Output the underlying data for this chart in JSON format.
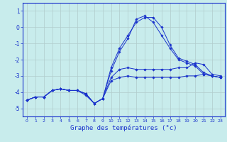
{
  "xlabel": "Graphe des températures (°c)",
  "background_color": "#c8ecec",
  "grid_color": "#b0cccc",
  "line_color": "#1a33cc",
  "xlim": [
    -0.5,
    23.5
  ],
  "ylim": [
    -5.5,
    1.5
  ],
  "yticks": [
    1,
    0,
    -1,
    -2,
    -3,
    -4,
    -5
  ],
  "xticks": [
    0,
    1,
    2,
    3,
    4,
    5,
    6,
    7,
    8,
    9,
    10,
    11,
    12,
    13,
    14,
    15,
    16,
    17,
    18,
    19,
    20,
    21,
    22,
    23
  ],
  "series": [
    {
      "x": [
        0,
        1,
        2,
        3,
        4,
        5,
        6,
        7,
        8,
        9,
        10,
        11,
        12,
        13,
        14,
        15,
        16,
        17,
        18,
        19,
        20,
        21,
        22,
        23
      ],
      "y": [
        -4.5,
        -4.3,
        -4.3,
        -3.9,
        -3.8,
        -3.9,
        -3.9,
        -4.1,
        -4.7,
        -4.4,
        -3.3,
        -3.1,
        -3.0,
        -3.1,
        -3.1,
        -3.1,
        -3.1,
        -3.1,
        -3.1,
        -3.0,
        -3.0,
        -2.9,
        -3.0,
        -3.1
      ]
    },
    {
      "x": [
        0,
        1,
        2,
        3,
        4,
        5,
        6,
        7,
        8,
        9,
        10,
        11,
        12,
        13,
        14,
        15,
        16,
        17,
        18,
        19,
        20,
        21,
        22,
        23
      ],
      "y": [
        -4.5,
        -4.3,
        -4.3,
        -3.9,
        -3.8,
        -3.9,
        -3.9,
        -4.1,
        -4.7,
        -4.4,
        -3.1,
        -2.6,
        -2.5,
        -2.6,
        -2.6,
        -2.6,
        -2.6,
        -2.6,
        -2.5,
        -2.5,
        -2.2,
        -2.3,
        -2.9,
        -3.0
      ]
    },
    {
      "x": [
        0,
        1,
        2,
        3,
        4,
        5,
        6,
        7,
        8,
        9,
        10,
        11,
        12,
        13,
        14,
        15,
        16,
        17,
        18,
        19,
        20,
        21,
        22,
        23
      ],
      "y": [
        -4.5,
        -4.3,
        -4.3,
        -3.9,
        -3.8,
        -3.9,
        -3.9,
        -4.1,
        -4.7,
        -4.4,
        -2.5,
        -1.3,
        -0.5,
        0.3,
        0.6,
        0.6,
        0.0,
        -1.1,
        -1.9,
        -2.1,
        -2.3,
        -2.8,
        -3.0,
        -3.1
      ]
    },
    {
      "x": [
        0,
        1,
        2,
        3,
        4,
        5,
        6,
        7,
        8,
        9,
        10,
        11,
        12,
        13,
        14,
        15,
        16,
        17,
        18,
        19,
        20,
        21,
        22,
        23
      ],
      "y": [
        -4.5,
        -4.3,
        -4.3,
        -3.9,
        -3.8,
        -3.9,
        -3.9,
        -4.2,
        -4.7,
        -4.4,
        -2.7,
        -1.5,
        -0.7,
        0.5,
        0.7,
        0.3,
        -0.5,
        -1.3,
        -2.0,
        -2.2,
        -2.4,
        -2.9,
        -3.0,
        -3.1
      ]
    }
  ]
}
